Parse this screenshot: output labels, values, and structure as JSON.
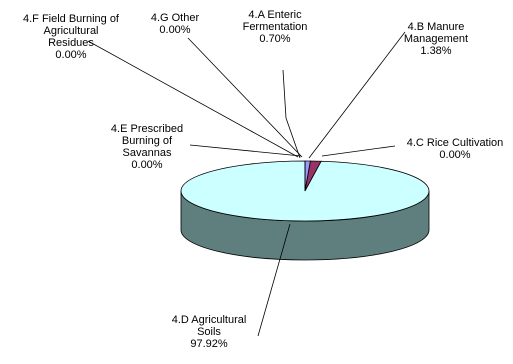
{
  "chart_data": {
    "type": "pie",
    "style": "3d",
    "title": "",
    "slices": [
      {
        "category": "4.A Enteric Fermentation",
        "value": 0.7,
        "label_lines": [
          "4.A Enteric",
          "Fermentation",
          "0.70%"
        ],
        "color": "#9999ff"
      },
      {
        "category": "4.B Manure Management",
        "value": 1.38,
        "label_lines": [
          "4.B Manure",
          "Management",
          "1.38%"
        ],
        "color": "#993366"
      },
      {
        "category": "4.C Rice Cultivation",
        "value": 0.0,
        "label_lines": [
          "4.C Rice Cultivation",
          "0.00%"
        ],
        "color": "#ffffcc"
      },
      {
        "category": "4.D Agricultural Soils",
        "value": 97.92,
        "label_lines": [
          "4.D Agricultural",
          "Soils",
          "97.92%"
        ],
        "color": "#ccffff"
      },
      {
        "category": "4.E Prescribed Burning of Savannas",
        "value": 0.0,
        "label_lines": [
          "4.E Prescribed",
          "Burning of",
          "Savannas",
          "0.00%"
        ],
        "color": "#660066"
      },
      {
        "category": "4.F Field Burning of Agricultural Residues",
        "value": 0.0,
        "label_lines": [
          "4.F Field Burning of",
          "Agricultural",
          "Residues",
          "0.00%"
        ],
        "color": "#ff8080"
      },
      {
        "category": "4.G Other",
        "value": 0.0,
        "label_lines": [
          "4.G Other",
          "0.00%"
        ],
        "color": "#0066cc"
      }
    ],
    "unit": "%",
    "legend": "none"
  }
}
